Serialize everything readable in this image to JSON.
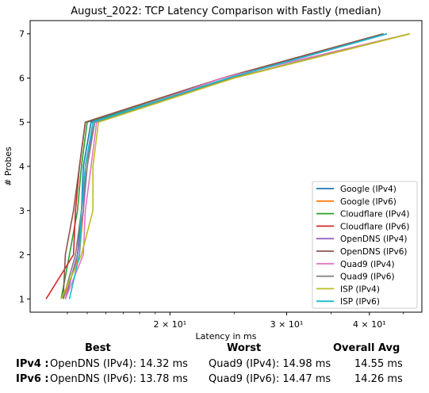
{
  "chart_data": {
    "type": "line",
    "title": "August_2022: TCP Latency Comparison with Fastly (median)",
    "xlabel": "Latency in ms",
    "ylabel": "# Probes",
    "x_scale": "log",
    "xlim": [
      12.3,
      48
    ],
    "ylim": [
      0.7,
      7.3
    ],
    "xticks": [
      20,
      30,
      40
    ],
    "xtick_labels": [
      "2 × 10¹",
      "3 × 10¹",
      "4 × 10¹"
    ],
    "yticks": [
      1,
      2,
      3,
      4,
      5,
      6,
      7
    ],
    "yticks_labels": [
      "1",
      "2",
      "3",
      "4",
      "5",
      "6",
      "7"
    ],
    "grid": false,
    "legend_position": "lower-right",
    "series": [
      {
        "name": "Google (IPv4)",
        "color": "#1f77b4",
        "points": [
          [
            13.9,
            1
          ],
          [
            14.5,
            2
          ],
          [
            14.7,
            3
          ],
          [
            14.8,
            4
          ],
          [
            15.2,
            5
          ],
          [
            24.5,
            6
          ],
          [
            42.5,
            7
          ]
        ]
      },
      {
        "name": "Google (IPv6)",
        "color": "#ff7f0e",
        "points": [
          [
            13.8,
            1
          ],
          [
            14.6,
            2
          ],
          [
            14.8,
            3
          ],
          [
            14.9,
            4
          ],
          [
            15.4,
            5
          ],
          [
            25.0,
            6
          ],
          [
            46.0,
            7
          ]
        ]
      },
      {
        "name": "Cloudflare (IPv4)",
        "color": "#2ca02c",
        "points": [
          [
            13.7,
            1
          ],
          [
            14.1,
            2
          ],
          [
            14.5,
            3
          ],
          [
            14.7,
            4
          ],
          [
            15.0,
            5
          ],
          [
            24.0,
            6
          ],
          [
            42.0,
            7
          ]
        ]
      },
      {
        "name": "Cloudflare (IPv6)",
        "color": "#d62728",
        "points": [
          [
            13.0,
            1
          ],
          [
            14.3,
            2
          ],
          [
            14.4,
            3
          ],
          [
            14.6,
            4
          ],
          [
            14.9,
            5
          ],
          [
            24.0,
            6
          ],
          [
            42.0,
            7
          ]
        ]
      },
      {
        "name": "OpenDNS (IPv4)",
        "color": "#9467bd",
        "points": [
          [
            13.9,
            1
          ],
          [
            14.5,
            2
          ],
          [
            14.8,
            3
          ],
          [
            15.0,
            4
          ],
          [
            15.3,
            5
          ],
          [
            24.5,
            6
          ],
          [
            42.5,
            7
          ]
        ]
      },
      {
        "name": "OpenDNS (IPv6)",
        "color": "#8c564b",
        "points": [
          [
            13.8,
            1
          ],
          [
            13.9,
            2
          ],
          [
            14.3,
            3
          ],
          [
            14.6,
            4
          ],
          [
            14.9,
            5
          ],
          [
            24.0,
            6
          ],
          [
            42.0,
            7
          ]
        ]
      },
      {
        "name": "Quad9 (IPv4)",
        "color": "#e377c2",
        "points": [
          [
            13.9,
            1
          ],
          [
            14.8,
            2
          ],
          [
            14.9,
            3
          ],
          [
            15.2,
            4
          ],
          [
            15.5,
            5
          ],
          [
            24.0,
            6
          ],
          [
            46.0,
            7
          ]
        ]
      },
      {
        "name": "Quad9 (IPv6)",
        "color": "#7f7f7f",
        "points": [
          [
            13.8,
            1
          ],
          [
            14.4,
            2
          ],
          [
            14.7,
            3
          ],
          [
            15.0,
            4
          ],
          [
            15.4,
            5
          ],
          [
            24.8,
            6
          ],
          [
            46.0,
            7
          ]
        ]
      },
      {
        "name": "ISP (IPv4)",
        "color": "#bcbd22",
        "points": [
          [
            13.7,
            1
          ],
          [
            14.7,
            2
          ],
          [
            15.3,
            3
          ],
          [
            15.3,
            4
          ],
          [
            15.6,
            5
          ],
          [
            25.0,
            6
          ],
          [
            46.0,
            7
          ]
        ]
      },
      {
        "name": "ISP (IPv6)",
        "color": "#17becf",
        "points": [
          [
            14.1,
            1
          ],
          [
            14.6,
            2
          ],
          [
            14.7,
            3
          ],
          [
            14.9,
            4
          ],
          [
            15.3,
            5
          ],
          [
            24.5,
            6
          ],
          [
            42.5,
            7
          ]
        ]
      }
    ]
  },
  "summary": {
    "headers": {
      "best": "Best",
      "worst": "Worst",
      "avg": "Overall Avg"
    },
    "rows": [
      {
        "label": "IPv4 :",
        "best": "OpenDNS (IPv4): 14.32 ms",
        "worst": "Quad9 (IPv4): 14.98 ms",
        "avg": "14.55 ms"
      },
      {
        "label": "IPv6 :",
        "best": "OpenDNS (IPv6): 13.78 ms",
        "worst": "Quad9 (IPv6): 14.47 ms",
        "avg": "14.26 ms"
      }
    ]
  }
}
